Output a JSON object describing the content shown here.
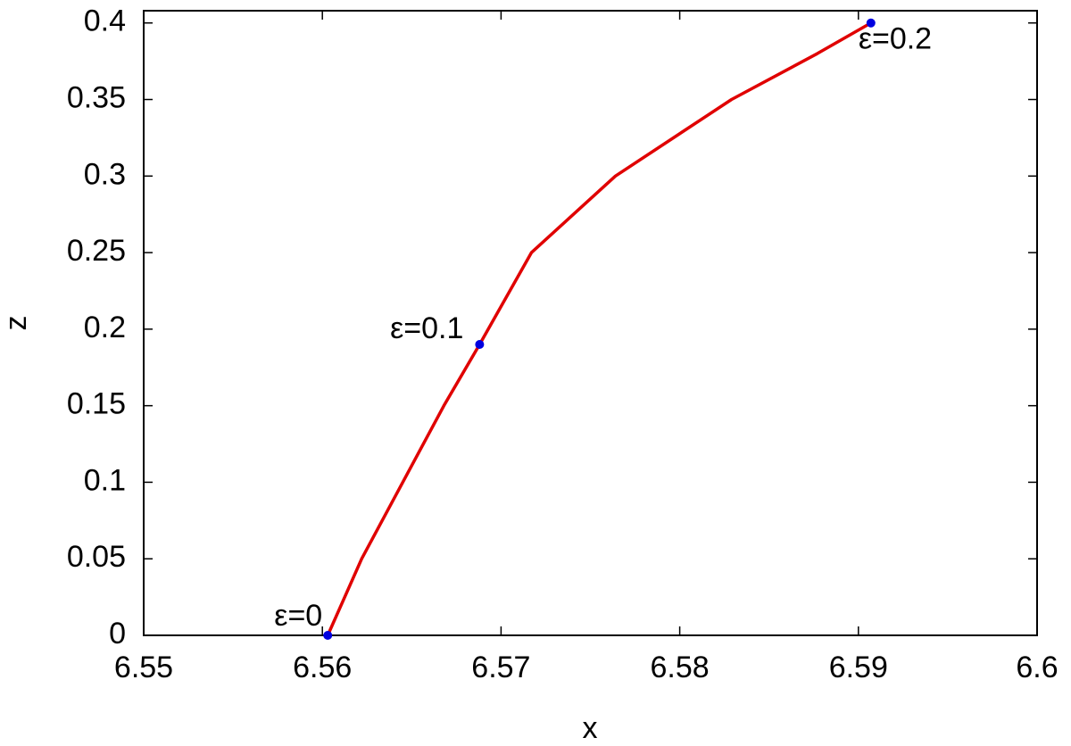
{
  "chart_data": {
    "type": "line",
    "x_label": "x",
    "y_label": "z",
    "xlim": [
      6.55,
      6.6
    ],
    "ylim": [
      0,
      0.408
    ],
    "xticks": [
      6.55,
      6.56,
      6.57,
      6.58,
      6.59,
      6.6
    ],
    "yticks": [
      0,
      0.05,
      0.1,
      0.15,
      0.2,
      0.25,
      0.3,
      0.35,
      0.4
    ],
    "series": [
      {
        "color": "#e00000",
        "x": [
          6.5603,
          6.5622,
          6.5645,
          6.5668,
          6.5688,
          6.5717,
          6.5764,
          6.5829,
          6.5877,
          6.5907
        ],
        "values": [
          0,
          0.05,
          0.1,
          0.15,
          0.19,
          0.25,
          0.3,
          0.35,
          0.38,
          0.4
        ]
      },
      {
        "color": "#0000e0",
        "markers": true,
        "x": [
          6.5603,
          6.5688,
          6.5907
        ],
        "values": [
          0,
          0.19,
          0.4
        ],
        "labels": [
          "ε=0",
          "ε=0.1",
          "ε=0.2"
        ]
      }
    ]
  }
}
